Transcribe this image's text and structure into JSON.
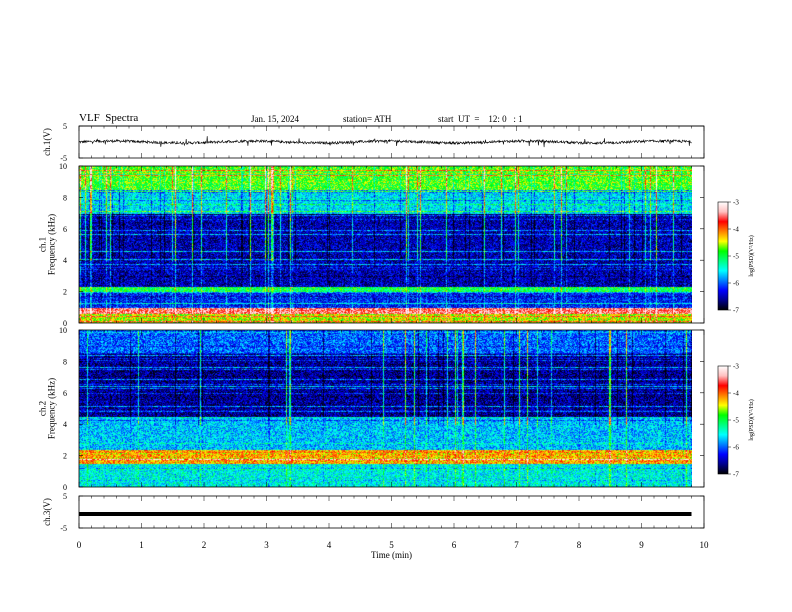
{
  "header": {
    "title": "VLF  Spectra",
    "date": "Jan. 15, 2024",
    "station": "station= ATH",
    "start": "start  UT  =    12: 0   : 1"
  },
  "chart_data": [
    {
      "type": "line",
      "panel": "ch1-waveform",
      "ylabel": "ch.1(V)",
      "ylim": [
        -5,
        5
      ],
      "yticks": [
        "5",
        "-5"
      ],
      "series": [
        {
          "values_mean": 0,
          "approx_amplitude": 0.8
        }
      ]
    },
    {
      "type": "heatmap",
      "panel": "ch1-spectrogram",
      "ylabel": "ch.1\nFrequency  (kHz)",
      "ylim": [
        0,
        10
      ],
      "yticks": [
        "0",
        "2",
        "4",
        "6",
        "8",
        "10"
      ],
      "colorbar": {
        "label": "log(PSD)(V²/Hz)",
        "ticks": [
          "-3",
          "-4",
          "-5",
          "-6",
          "-7"
        ],
        "range": [
          -7,
          -3
        ]
      },
      "description_bands_khz": [
        {
          "from": 0,
          "to": 0.6,
          "level": -4.5
        },
        {
          "from": 0.6,
          "to": 1.0,
          "level": -3.5
        },
        {
          "from": 1.0,
          "to": 2.0,
          "level": -6.2
        },
        {
          "from": 2.0,
          "to": 2.3,
          "level": -5.0
        },
        {
          "from": 2.3,
          "to": 7.0,
          "level": -6.5
        },
        {
          "from": 7.0,
          "to": 8.5,
          "level": -5.6
        },
        {
          "from": 8.5,
          "to": 10,
          "level": -4.8
        }
      ]
    },
    {
      "type": "heatmap",
      "panel": "ch2-spectrogram",
      "ylabel": "ch.2\nFrequency  (kHz)",
      "ylim": [
        0,
        10
      ],
      "yticks": [
        "0",
        "2",
        "4",
        "6",
        "8",
        "10"
      ],
      "colorbar": {
        "label": "log(PSD)(V²/Hz)",
        "ticks": [
          "-3",
          "-4",
          "-5",
          "-6",
          "-7"
        ],
        "range": [
          -7,
          -3
        ]
      },
      "description_bands_khz": [
        {
          "from": 0,
          "to": 1.5,
          "level": -5.5
        },
        {
          "from": 1.5,
          "to": 2.4,
          "level": -4.2
        },
        {
          "from": 2.4,
          "to": 4.5,
          "level": -5.7
        },
        {
          "from": 4.5,
          "to": 8.5,
          "level": -6.6
        },
        {
          "from": 8.5,
          "to": 10,
          "level": -6.0
        }
      ]
    },
    {
      "type": "line",
      "panel": "ch3-waveform",
      "ylabel": "ch.3(V)",
      "ylim": [
        -5,
        5
      ],
      "yticks": [
        "5",
        "-5"
      ],
      "series": [
        {
          "values_mean": 0,
          "approx_amplitude": 0
        }
      ]
    }
  ],
  "x_axis": {
    "label": "Time  (min)",
    "range": [
      0,
      10
    ],
    "ticks": [
      "0",
      "1",
      "2",
      "3",
      "4",
      "5",
      "6",
      "7",
      "8",
      "9",
      "10"
    ],
    "data_end": 9.8
  },
  "colors": {
    "colormap": [
      "#000000",
      "#00008b",
      "#0000ff",
      "#0080ff",
      "#00ffff",
      "#00ff80",
      "#00ff00",
      "#ffff00",
      "#ff8000",
      "#ff0000",
      "#ffc0c0",
      "#ffffff"
    ]
  }
}
